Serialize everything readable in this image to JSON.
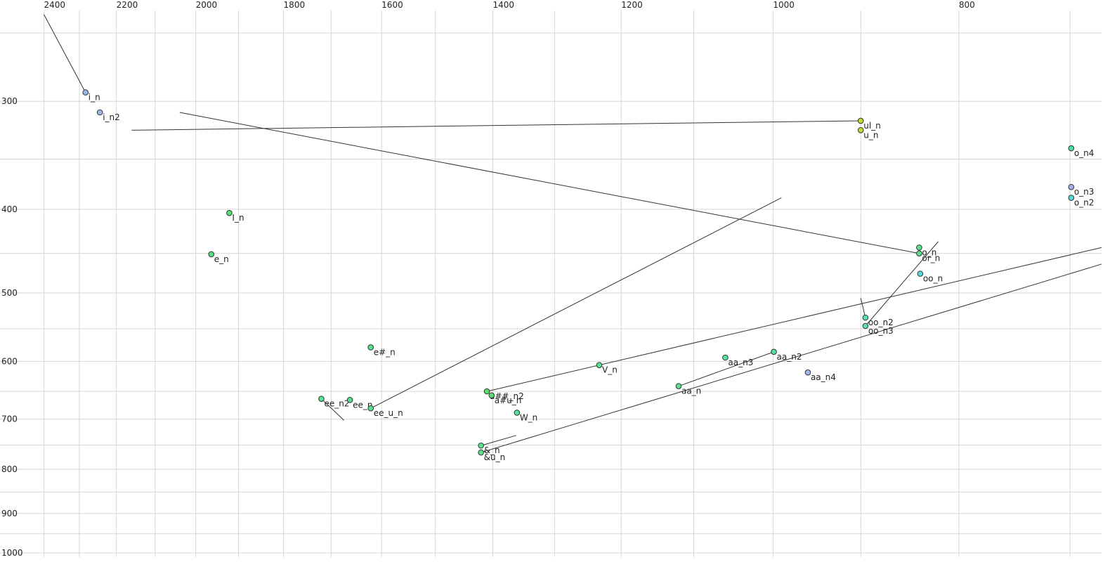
{
  "chart_data": {
    "type": "scatter",
    "x_log": true,
    "y_log": true,
    "xlim": [
      2530,
      674
    ],
    "ylim": [
      229,
      1011
    ],
    "xticks": [
      2400,
      2200,
      2000,
      1800,
      1600,
      1400,
      1200,
      1000,
      800
    ],
    "yticks": [
      300,
      400,
      500,
      600,
      700,
      800,
      900,
      1000
    ],
    "xgrid": [
      2300,
      2100,
      1900,
      1700,
      1500,
      1300,
      1100,
      900,
      700
    ],
    "ygrid": [
      250,
      350,
      450,
      550,
      650,
      750,
      850,
      950
    ],
    "grid": true,
    "points": [
      {
        "label": "i_n",
        "x": 2283,
        "y": 293,
        "color": "#9ab8ee",
        "end_x": 2400,
        "end_y": 238
      },
      {
        "label": "i_n2",
        "x": 2244,
        "y": 309,
        "color": "#9ab8ee"
      },
      {
        "label": "ul_n",
        "x": 900,
        "y": 316,
        "color": "#c0dc30",
        "end_x": 2160,
        "end_y": 324
      },
      {
        "label": "u_n",
        "x": 900,
        "y": 324,
        "color": "#c0dc30"
      },
      {
        "label": "o_n4",
        "x": 699,
        "y": 340,
        "color": "#48e0a0"
      },
      {
        "label": "o_n3",
        "x": 699,
        "y": 377,
        "color": "#a8b0f0"
      },
      {
        "label": "o_n2",
        "x": 699,
        "y": 388,
        "color": "#58d8d8"
      },
      {
        "label": "I_n",
        "x": 1921,
        "y": 404,
        "color": "#58e070"
      },
      {
        "label": "e_n",
        "x": 1963,
        "y": 451,
        "color": "#58e080"
      },
      {
        "label": "o_n",
        "x": 839,
        "y": 443,
        "color": "#58e090"
      },
      {
        "label": "or_n",
        "x": 839,
        "y": 450,
        "color": "#58e090",
        "end_x": 2039,
        "end_y": 309
      },
      {
        "label": "oo_n",
        "x": 838,
        "y": 475,
        "color": "#58d8e0"
      },
      {
        "label": "oo_n2",
        "x": 895,
        "y": 534,
        "color": "#58e0b0",
        "end_x": 900,
        "end_y": 507
      },
      {
        "label": "oo_n3",
        "x": 895,
        "y": 546,
        "color": "#58e0b0",
        "end_x": 820,
        "end_y": 436
      },
      {
        "label": "e#_n",
        "x": 1621,
        "y": 578,
        "color": "#58e090"
      },
      {
        "label": "V_n",
        "x": 1232,
        "y": 606,
        "color": "#58e090"
      },
      {
        "label": "aa_n3",
        "x": 1059,
        "y": 594,
        "color": "#58e0a0"
      },
      {
        "label": "aa_n2",
        "x": 999,
        "y": 585,
        "color": "#58e0a0"
      },
      {
        "label": "aa_n4",
        "x": 959,
        "y": 618,
        "color": "#a0b8f0"
      },
      {
        "label": "aa_n",
        "x": 1120,
        "y": 641,
        "color": "#58e090",
        "end_x": 999,
        "end_y": 585
      },
      {
        "label": "ee_n2",
        "x": 1720,
        "y": 663,
        "color": "#58e090",
        "end_x": 1674,
        "end_y": 702
      },
      {
        "label": "ee_n",
        "x": 1662,
        "y": 665,
        "color": "#58e090"
      },
      {
        "label": "ee_u_n",
        "x": 1621,
        "y": 680,
        "color": "#58e090",
        "end_x": 990,
        "end_y": 388
      },
      {
        "label": "a##_n2",
        "x": 1410,
        "y": 650,
        "color": "#58e070",
        "end_x": 674,
        "end_y": 443
      },
      {
        "label": "a#u_n",
        "x": 1402,
        "y": 657,
        "color": "#58e070"
      },
      {
        "label": "W_n",
        "x": 1360,
        "y": 688,
        "color": "#58e0a0"
      },
      {
        "label": "&_n",
        "x": 1420,
        "y": 751,
        "color": "#58e090",
        "end_x": 1361,
        "end_y": 731
      },
      {
        "label": "&u_n",
        "x": 1420,
        "y": 765,
        "color": "#58e090",
        "end_x": 674,
        "end_y": 463
      }
    ]
  }
}
